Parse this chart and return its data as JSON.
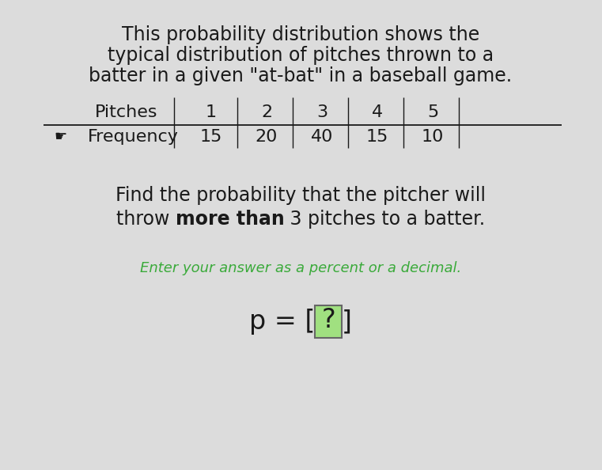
{
  "bg_color": "#dcdcdc",
  "title_lines": [
    "This probability distribution shows the",
    "typical distribution of pitches thrown to a",
    "batter in a given \"at-bat\" in a baseball game."
  ],
  "table_header": [
    "Pitches",
    "1",
    "2",
    "3",
    "4",
    "5"
  ],
  "table_row_label": "Frequency",
  "table_row_values": [
    "15",
    "20",
    "40",
    "15",
    "10"
  ],
  "question_line1": "Find the probability that the pitcher will",
  "question_pieces": [
    [
      "throw ",
      false
    ],
    [
      "more than",
      true
    ],
    [
      " 3 pitches to a batter.",
      false
    ]
  ],
  "hint_text": "Enter your answer as a percent or a decimal.",
  "hint_color": "#3aaa3a",
  "answer_char": "?",
  "answer_box_color": "#a0e080",
  "answer_box_edge": "#666666",
  "text_color": "#1a1a1a",
  "title_fontsize": 17,
  "table_fontsize": 16,
  "question_fontsize": 17,
  "hint_fontsize": 13,
  "answer_fontsize": 24
}
